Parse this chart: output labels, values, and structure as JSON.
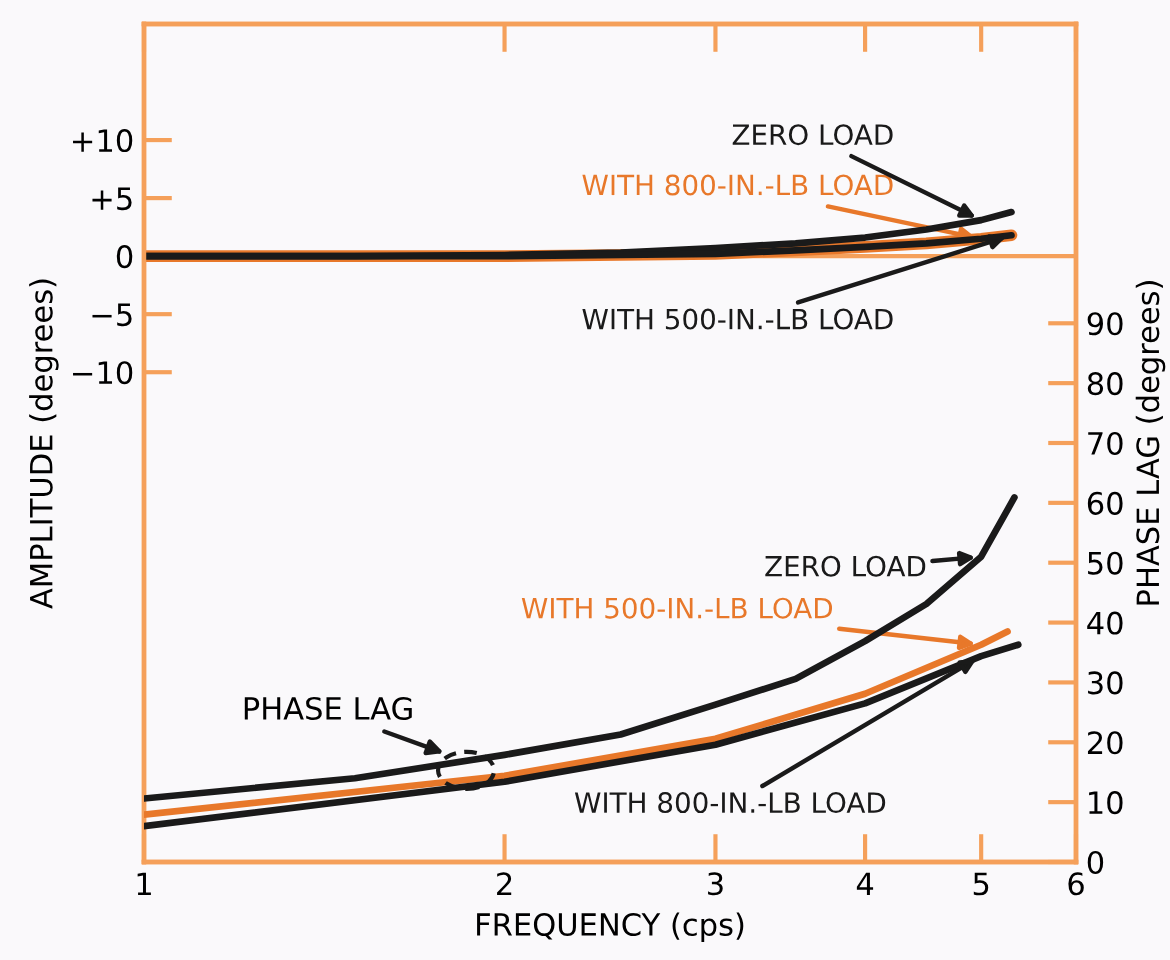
{
  "chart_data": {
    "type": "line",
    "xlabel": "FREQUENCY (cps)",
    "ylabel": "AMPLITUDE (degrees)",
    "y2label": "PHASE LAG (degrees)",
    "log": "x",
    "xlim": [
      1,
      6
    ],
    "xticks": [
      1,
      2,
      3,
      4,
      5,
      6
    ],
    "ylim": [
      -52.2,
      20
    ],
    "yticks": [
      {
        "value": 10,
        "label": "+10"
      },
      {
        "value": 5,
        "label": "+5"
      },
      0,
      {
        "value": -5,
        "label": "−5"
      },
      {
        "value": -10,
        "label": "−10"
      }
    ],
    "y2lim": [
      0,
      140
    ],
    "y2ticks": [
      0,
      10,
      20,
      30,
      40,
      50,
      60,
      70,
      80,
      90
    ],
    "grid": false,
    "marker": "none",
    "line_style": "solid",
    "ref_lines": [
      {
        "axis": "y",
        "value": 0,
        "color": "#f5a05a"
      }
    ],
    "annotations": [
      "PHASE LAG"
    ],
    "series": [
      {
        "name": "ZERO LOAD",
        "color": "#1a1a1a",
        "axis": "y",
        "x": [
          1,
          1.5,
          2,
          2.5,
          3,
          3.5,
          4,
          4.5,
          5,
          5.3
        ],
        "values": [
          0,
          0,
          0.1,
          0.3,
          0.7,
          1.1,
          1.6,
          2.3,
          3.1,
          3.8
        ]
      },
      {
        "name": "WITH 800-IN.-LB LOAD",
        "color": "#e8782a",
        "axis": "y",
        "x": [
          1,
          1.5,
          2,
          2.5,
          3,
          3.5,
          4,
          4.5,
          5,
          5.3
        ],
        "values": [
          0,
          0,
          0,
          0.1,
          0.2,
          0.5,
          0.8,
          1.1,
          1.5,
          1.8
        ]
      },
      {
        "name": "WITH 500-IN.-LB LOAD",
        "color": "#1a1a1a",
        "axis": "y",
        "x": [
          1,
          1.5,
          2,
          2.5,
          3,
          3.5,
          4,
          4.5,
          5,
          5.3
        ],
        "values": [
          0,
          0,
          0,
          0.1,
          0.2,
          0.5,
          0.8,
          1.1,
          1.5,
          1.8
        ]
      },
      {
        "name": "ZERO LOAD",
        "color": "#1a1a1a",
        "axis": "y2",
        "x": [
          1,
          1.5,
          2,
          2.5,
          3,
          3.5,
          4,
          4.5,
          5,
          5.33
        ],
        "values": [
          10.6,
          14,
          17.9,
          21.3,
          26.3,
          30.6,
          36.9,
          43.1,
          51,
          60.9
        ]
      },
      {
        "name": "WITH 500-IN.-LB LOAD",
        "color": "#e8782a",
        "axis": "y2",
        "x": [
          1,
          2,
          3,
          4,
          5,
          5.26
        ],
        "values": [
          7.9,
          14.4,
          20.6,
          28.1,
          36.3,
          38.5
        ]
      },
      {
        "name": "WITH 800-IN.-LB LOAD",
        "color": "#1a1a1a",
        "axis": "y2",
        "x": [
          1,
          2,
          3,
          4,
          5,
          5.37
        ],
        "values": [
          6,
          13.4,
          19.6,
          26.5,
          34.4,
          36.3
        ]
      }
    ]
  }
}
